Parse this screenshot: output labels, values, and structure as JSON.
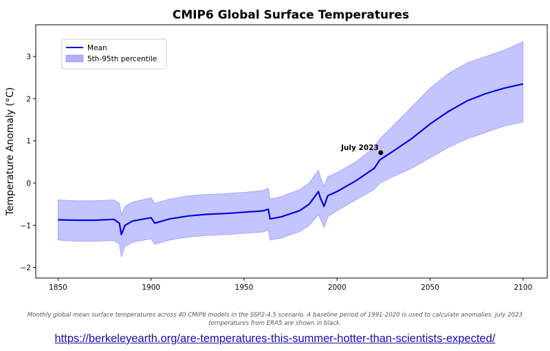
{
  "chart_data": {
    "type": "line",
    "title": "CMIP6 Global Surface Temperatures",
    "xlabel": "",
    "ylabel": "Temperature Anomaly (°C)",
    "xlim": [
      1838,
      2113
    ],
    "ylim": [
      -2.25,
      3.75
    ],
    "xticks": [
      1850,
      1900,
      1950,
      2000,
      2050,
      2100
    ],
    "yticks": [
      -2,
      -1,
      0,
      1,
      2,
      3
    ],
    "grid": false,
    "legend_position": "upper-left",
    "series": [
      {
        "name": "Mean",
        "color": "#0000dd",
        "x": [
          1850,
          1860,
          1870,
          1880,
          1883,
          1884,
          1886,
          1890,
          1900,
          1902,
          1910,
          1920,
          1930,
          1940,
          1950,
          1960,
          1963,
          1964,
          1970,
          1980,
          1985,
          1990,
          1991,
          1993,
          1995,
          2000,
          2010,
          2020,
          2023,
          2030,
          2040,
          2050,
          2060,
          2070,
          2080,
          2090,
          2100
        ],
        "y": [
          -0.87,
          -0.88,
          -0.88,
          -0.86,
          -0.95,
          -1.22,
          -1.0,
          -0.9,
          -0.82,
          -0.95,
          -0.85,
          -0.78,
          -0.74,
          -0.72,
          -0.69,
          -0.66,
          -0.62,
          -0.85,
          -0.8,
          -0.65,
          -0.5,
          -0.2,
          -0.35,
          -0.55,
          -0.3,
          -0.2,
          0.05,
          0.35,
          0.55,
          0.75,
          1.05,
          1.4,
          1.7,
          1.95,
          2.12,
          2.25,
          2.35
        ]
      }
    ],
    "band": {
      "name": "5th-95th percentile",
      "color": "#b0b0ff",
      "x": [
        1850,
        1860,
        1870,
        1880,
        1883,
        1884,
        1886,
        1890,
        1900,
        1902,
        1910,
        1920,
        1930,
        1940,
        1950,
        1960,
        1963,
        1964,
        1970,
        1980,
        1985,
        1990,
        1991,
        1993,
        1995,
        2000,
        2010,
        2020,
        2023,
        2030,
        2040,
        2050,
        2060,
        2070,
        2080,
        2090,
        2100
      ],
      "low": [
        -1.35,
        -1.38,
        -1.38,
        -1.36,
        -1.45,
        -1.75,
        -1.5,
        -1.4,
        -1.32,
        -1.45,
        -1.35,
        -1.28,
        -1.24,
        -1.22,
        -1.19,
        -1.16,
        -1.12,
        -1.35,
        -1.3,
        -1.15,
        -1.0,
        -0.75,
        -0.85,
        -1.05,
        -0.8,
        -0.65,
        -0.4,
        -0.15,
        0.0,
        0.15,
        0.35,
        0.6,
        0.85,
        1.05,
        1.2,
        1.35,
        1.45
      ],
      "high": [
        -0.4,
        -0.42,
        -0.42,
        -0.4,
        -0.48,
        -0.75,
        -0.55,
        -0.45,
        -0.35,
        -0.48,
        -0.38,
        -0.3,
        -0.27,
        -0.25,
        -0.22,
        -0.18,
        -0.12,
        -0.38,
        -0.32,
        -0.15,
        0.0,
        0.3,
        0.15,
        -0.08,
        0.15,
        0.25,
        0.5,
        0.85,
        1.05,
        1.35,
        1.8,
        2.25,
        2.6,
        2.85,
        3.0,
        3.15,
        3.35
      ]
    },
    "annotation": {
      "label": "July 2023",
      "x": 2023.5,
      "y": 0.72,
      "color": "#000000"
    }
  },
  "caption": "Monthly global mean surface temperatures across 40 CMIP6 models in the SSP2-4.5 scenario. A baseline period of 1991-2020 is used to calculate anomalies. July 2023 temperatures from ERA5 are shown in black.",
  "source_link": "https://berkeleyearth.org/are-temperatures-this-summer-hotter-than-scientists-expected/"
}
